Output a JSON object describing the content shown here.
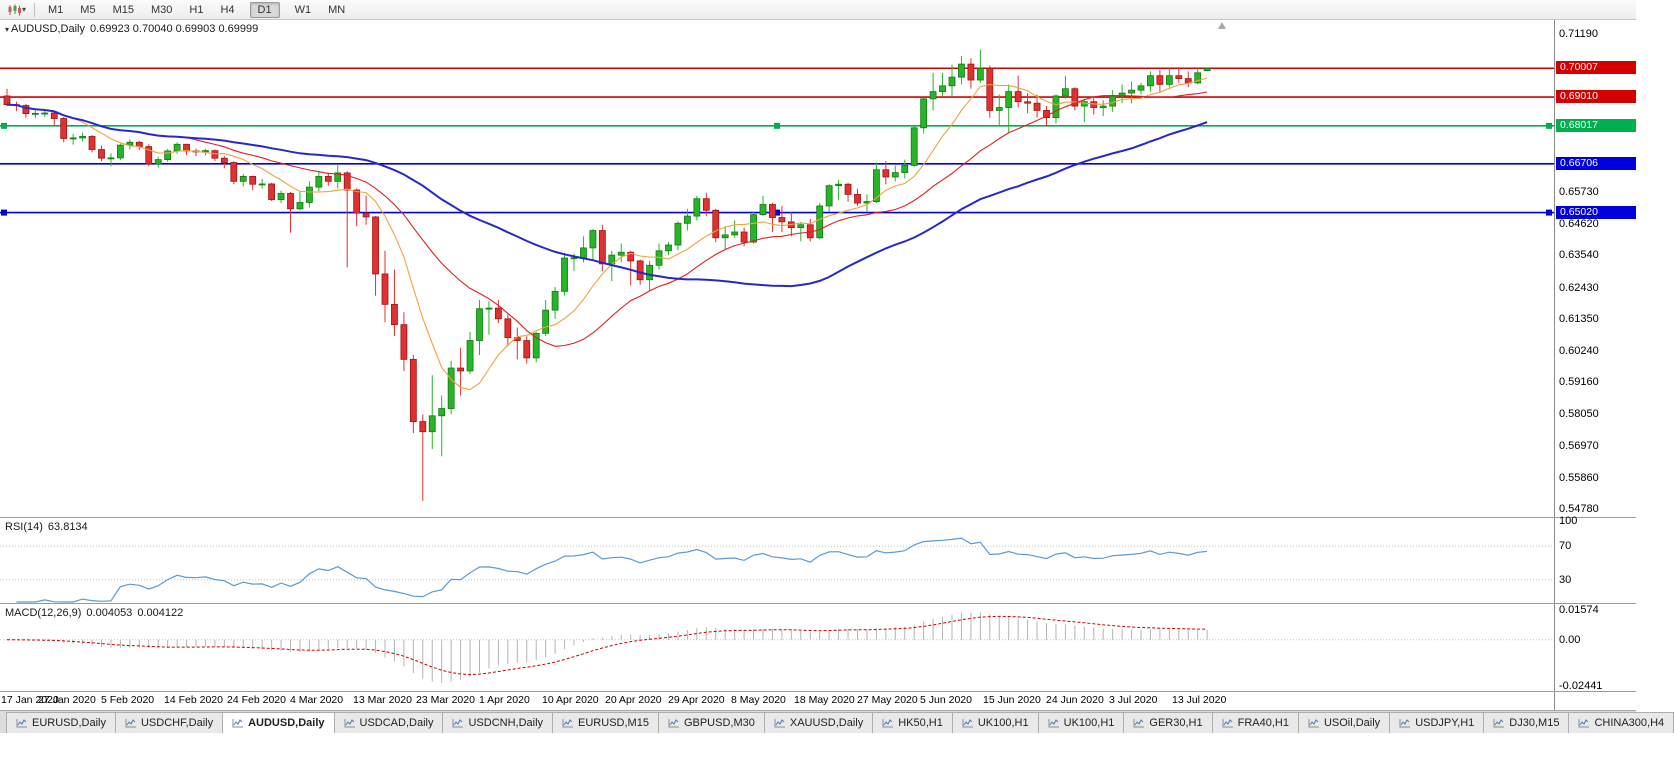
{
  "toolbar": {
    "chart_type_icon": "candlestick-chart-icon",
    "dropdown_icon": "chevron-down-icon",
    "dropdown_glyph": "▾",
    "timeframes": [
      "M1",
      "M5",
      "M15",
      "M30",
      "H1",
      "H4",
      "D1",
      "W1",
      "MN"
    ],
    "active_timeframe": "D1"
  },
  "chart": {
    "menu_glyph": "▾",
    "symbol_label": "AUDUSD,Daily",
    "ohlc_label": "0.69923 0.70040 0.69903 0.69999",
    "open": "0.69923",
    "high": "0.70040",
    "low": "0.69903",
    "close": "0.69999"
  },
  "chart_data": {
    "type": "candlestick",
    "symbol": "AUDUSD",
    "timeframe": "Daily",
    "price_range": [
      0.5478,
      0.7119
    ],
    "up_color": "#28b428",
    "up_border": "#127a12",
    "down_color": "#e03030",
    "down_border": "#9c1616",
    "x_labels": [
      "17 Jan 2020",
      "27 Jan 2020",
      "5 Feb 2020",
      "14 Feb 2020",
      "24 Feb 2020",
      "4 Mar 2020",
      "13 Mar 2020",
      "23 Mar 2020",
      "1 Apr 2020",
      "10 Apr 2020",
      "20 Apr 2020",
      "29 Apr 2020",
      "8 May 2020",
      "18 May 2020",
      "27 May 2020",
      "5 Jun 2020",
      "15 Jun 2020",
      "24 Jun 2020",
      "3 Jul 2020",
      "13 Jul 2020"
    ],
    "scale_labels": [
      "0.71190",
      "0.65730",
      "0.64620",
      "0.63540",
      "0.62430",
      "0.61350",
      "0.60240",
      "0.59160",
      "0.58050",
      "0.56970",
      "0.55860",
      "0.54780"
    ],
    "hlines": [
      {
        "price": 0.70007,
        "label": "0.70007",
        "color": "#d40000",
        "selected": false
      },
      {
        "price": 0.6901,
        "label": "0.69010",
        "color": "#d40000",
        "selected": false
      },
      {
        "price": 0.68017,
        "label": "0.68017",
        "color": "#00b050",
        "selected": true
      },
      {
        "price": 0.66706,
        "label": "0.66706",
        "color": "#0000dd",
        "selected": false
      },
      {
        "price": 0.6502,
        "label": "0.65020",
        "color": "#0000dd",
        "selected": true
      }
    ],
    "moving_averages": [
      {
        "name": "fast",
        "period": 8,
        "color": "#eda440",
        "width": 1.1
      },
      {
        "name": "mid",
        "period": 20,
        "color": "#e02020",
        "width": 1.1
      },
      {
        "name": "slow",
        "period": 45,
        "color": "#2828c8",
        "width": 2.0
      }
    ],
    "candles": [
      [
        0.6905,
        0.693,
        0.687,
        0.6875
      ],
      [
        0.6875,
        0.6885,
        0.6852,
        0.6872
      ],
      [
        0.6872,
        0.6878,
        0.683,
        0.6844
      ],
      [
        0.6844,
        0.6861,
        0.6828,
        0.6845
      ],
      [
        0.6845,
        0.6858,
        0.6832,
        0.6846
      ],
      [
        0.6846,
        0.685,
        0.6805,
        0.6827
      ],
      [
        0.6827,
        0.6832,
        0.6745,
        0.6758
      ],
      [
        0.6758,
        0.6774,
        0.6737,
        0.676
      ],
      [
        0.676,
        0.6778,
        0.6748,
        0.6765
      ],
      [
        0.6765,
        0.677,
        0.671,
        0.672
      ],
      [
        0.672,
        0.6733,
        0.668,
        0.669
      ],
      [
        0.669,
        0.6707,
        0.6662,
        0.6691
      ],
      [
        0.6691,
        0.674,
        0.6683,
        0.6735
      ],
      [
        0.6735,
        0.6755,
        0.672,
        0.6745
      ],
      [
        0.6745,
        0.675,
        0.6718,
        0.673
      ],
      [
        0.673,
        0.6738,
        0.6662,
        0.667
      ],
      [
        0.667,
        0.6695,
        0.6657,
        0.6685
      ],
      [
        0.6685,
        0.6722,
        0.6678,
        0.6715
      ],
      [
        0.6715,
        0.6745,
        0.6705,
        0.6738
      ],
      [
        0.6738,
        0.674,
        0.67,
        0.6715
      ],
      [
        0.6715,
        0.6723,
        0.6697,
        0.6712
      ],
      [
        0.6712,
        0.6722,
        0.67,
        0.6716
      ],
      [
        0.6716,
        0.672,
        0.668,
        0.669
      ],
      [
        0.669,
        0.6697,
        0.6655,
        0.6675
      ],
      [
        0.6675,
        0.668,
        0.66,
        0.661
      ],
      [
        0.661,
        0.6635,
        0.6592,
        0.6627
      ],
      [
        0.6627,
        0.663,
        0.658,
        0.66
      ],
      [
        0.66,
        0.6618,
        0.6585,
        0.6601
      ],
      [
        0.6601,
        0.6605,
        0.6542,
        0.6547
      ],
      [
        0.6547,
        0.6578,
        0.6535,
        0.6568
      ],
      [
        0.6568,
        0.6573,
        0.6433,
        0.6515
      ],
      [
        0.6515,
        0.6574,
        0.651,
        0.6537
      ],
      [
        0.6537,
        0.661,
        0.652,
        0.659
      ],
      [
        0.659,
        0.6645,
        0.6576,
        0.6627
      ],
      [
        0.6627,
        0.664,
        0.6595,
        0.661
      ],
      [
        0.661,
        0.667,
        0.6585,
        0.6639
      ],
      [
        0.6639,
        0.6645,
        0.6313,
        0.658
      ],
      [
        0.658,
        0.6585,
        0.6455,
        0.65
      ],
      [
        0.65,
        0.656,
        0.646,
        0.6487
      ],
      [
        0.6487,
        0.649,
        0.6215,
        0.629
      ],
      [
        0.629,
        0.637,
        0.6123,
        0.6185
      ],
      [
        0.6185,
        0.6305,
        0.6076,
        0.6115
      ],
      [
        0.6115,
        0.6158,
        0.5955,
        0.5995
      ],
      [
        0.5995,
        0.601,
        0.574,
        0.578
      ],
      [
        0.578,
        0.5805,
        0.5506,
        0.5745
      ],
      [
        0.5745,
        0.594,
        0.5685,
        0.58
      ],
      [
        0.58,
        0.587,
        0.566,
        0.5825
      ],
      [
        0.5825,
        0.599,
        0.5805,
        0.5965
      ],
      [
        0.5965,
        0.6035,
        0.587,
        0.5955
      ],
      [
        0.5955,
        0.609,
        0.5945,
        0.606
      ],
      [
        0.606,
        0.62,
        0.601,
        0.617
      ],
      [
        0.617,
        0.6195,
        0.608,
        0.6172
      ],
      [
        0.6172,
        0.62,
        0.612,
        0.6135
      ],
      [
        0.6135,
        0.615,
        0.604,
        0.607
      ],
      [
        0.607,
        0.6105,
        0.5995,
        0.606
      ],
      [
        0.606,
        0.6075,
        0.598,
        0.6
      ],
      [
        0.6,
        0.609,
        0.5985,
        0.6085
      ],
      [
        0.6085,
        0.62,
        0.6075,
        0.6165
      ],
      [
        0.6165,
        0.6245,
        0.6135,
        0.623
      ],
      [
        0.623,
        0.6363,
        0.6215,
        0.6345
      ],
      [
        0.6345,
        0.636,
        0.63,
        0.6346
      ],
      [
        0.6346,
        0.642,
        0.633,
        0.638
      ],
      [
        0.638,
        0.6445,
        0.634,
        0.644
      ],
      [
        0.644,
        0.646,
        0.63,
        0.6325
      ],
      [
        0.6325,
        0.637,
        0.6265,
        0.6355
      ],
      [
        0.6355,
        0.6395,
        0.633,
        0.6365
      ],
      [
        0.6365,
        0.637,
        0.625,
        0.6335
      ],
      [
        0.6335,
        0.634,
        0.6253,
        0.627
      ],
      [
        0.627,
        0.6335,
        0.623,
        0.632
      ],
      [
        0.632,
        0.6395,
        0.6305,
        0.637
      ],
      [
        0.637,
        0.64,
        0.6355,
        0.639
      ],
      [
        0.639,
        0.6472,
        0.6372,
        0.6465
      ],
      [
        0.6465,
        0.6515,
        0.644,
        0.649
      ],
      [
        0.649,
        0.656,
        0.6475,
        0.655
      ],
      [
        0.655,
        0.657,
        0.649,
        0.651
      ],
      [
        0.651,
        0.6515,
        0.64,
        0.6415
      ],
      [
        0.6415,
        0.6455,
        0.6372,
        0.6425
      ],
      [
        0.6425,
        0.6475,
        0.6415,
        0.6435
      ],
      [
        0.6435,
        0.645,
        0.6385,
        0.64
      ],
      [
        0.64,
        0.6505,
        0.6395,
        0.6495
      ],
      [
        0.6495,
        0.656,
        0.649,
        0.653
      ],
      [
        0.653,
        0.6535,
        0.6435,
        0.6485
      ],
      [
        0.6485,
        0.6525,
        0.6435,
        0.647
      ],
      [
        0.647,
        0.6505,
        0.642,
        0.645
      ],
      [
        0.645,
        0.647,
        0.6403,
        0.646
      ],
      [
        0.646,
        0.648,
        0.6402,
        0.6415
      ],
      [
        0.6415,
        0.6535,
        0.641,
        0.6525
      ],
      [
        0.6525,
        0.66,
        0.6505,
        0.6595
      ],
      [
        0.6595,
        0.6615,
        0.6545,
        0.66
      ],
      [
        0.66,
        0.6605,
        0.654,
        0.6565
      ],
      [
        0.6565,
        0.6585,
        0.6525,
        0.6535
      ],
      [
        0.6535,
        0.6565,
        0.6505,
        0.654
      ],
      [
        0.654,
        0.6675,
        0.6535,
        0.665
      ],
      [
        0.665,
        0.668,
        0.66,
        0.6625
      ],
      [
        0.6625,
        0.6665,
        0.661,
        0.664
      ],
      [
        0.664,
        0.6685,
        0.662,
        0.6665
      ],
      [
        0.6665,
        0.68,
        0.666,
        0.6795
      ],
      [
        0.6795,
        0.69,
        0.6775,
        0.6895
      ],
      [
        0.6895,
        0.6985,
        0.6855,
        0.692
      ],
      [
        0.692,
        0.6985,
        0.6905,
        0.694
      ],
      [
        0.694,
        0.7013,
        0.69,
        0.697
      ],
      [
        0.697,
        0.7043,
        0.6945,
        0.7015
      ],
      [
        0.7015,
        0.7035,
        0.693,
        0.696
      ],
      [
        0.696,
        0.7065,
        0.695,
        0.7
      ],
      [
        0.7,
        0.701,
        0.683,
        0.6855
      ],
      [
        0.6855,
        0.691,
        0.68,
        0.6865
      ],
      [
        0.6865,
        0.6945,
        0.6775,
        0.692
      ],
      [
        0.692,
        0.6975,
        0.6865,
        0.6885
      ],
      [
        0.6885,
        0.6915,
        0.6845,
        0.688
      ],
      [
        0.688,
        0.691,
        0.683,
        0.6855
      ],
      [
        0.6855,
        0.687,
        0.68,
        0.683
      ],
      [
        0.683,
        0.691,
        0.681,
        0.6905
      ],
      [
        0.6905,
        0.6975,
        0.6895,
        0.693
      ],
      [
        0.693,
        0.6935,
        0.6855,
        0.687
      ],
      [
        0.687,
        0.6895,
        0.6815,
        0.6885
      ],
      [
        0.6885,
        0.69,
        0.684,
        0.6865
      ],
      [
        0.6865,
        0.689,
        0.6835,
        0.687
      ],
      [
        0.687,
        0.6925,
        0.685,
        0.6905
      ],
      [
        0.6905,
        0.6945,
        0.688,
        0.6915
      ],
      [
        0.6915,
        0.6955,
        0.688,
        0.6925
      ],
      [
        0.6925,
        0.695,
        0.691,
        0.694
      ],
      [
        0.694,
        0.699,
        0.692,
        0.6975
      ],
      [
        0.6975,
        0.6995,
        0.692,
        0.6945
      ],
      [
        0.6945,
        0.7,
        0.6935,
        0.6975
      ],
      [
        0.6975,
        0.7005,
        0.695,
        0.6965
      ],
      [
        0.6965,
        0.699,
        0.6935,
        0.695
      ],
      [
        0.695,
        0.7,
        0.6945,
        0.6985
      ],
      [
        0.69923,
        0.7004,
        0.69903,
        0.69999
      ]
    ],
    "indicators": {
      "rsi": {
        "label": "RSI(14)",
        "value": "63.8134",
        "period": 14,
        "levels": [
          70,
          30
        ],
        "axis_labels": [
          "100",
          "70",
          "30"
        ],
        "color": "#5b9bd5"
      },
      "macd": {
        "label": "MACD(12,26,9)",
        "value_main": "0.004053",
        "value_signal": "0.004122",
        "fast": 12,
        "slow": 26,
        "signal": 9,
        "range": [
          -0.02441,
          0.01574
        ],
        "axis_labels": [
          "0.01574",
          "0.00",
          "-0.02441"
        ],
        "histogram_color": "#b4b4b4",
        "signal_color": "#cc0000"
      }
    }
  },
  "tabs": {
    "active_index": 2,
    "items": [
      {
        "label": "EURUSD,Daily"
      },
      {
        "label": "USDCHF,Daily"
      },
      {
        "label": "AUDUSD,Daily"
      },
      {
        "label": "USDCAD,Daily"
      },
      {
        "label": "USDCNH,Daily"
      },
      {
        "label": "EURUSD,M15"
      },
      {
        "label": "GBPUSD,M30"
      },
      {
        "label": "XAUUSD,Daily"
      },
      {
        "label": "HK50,H1"
      },
      {
        "label": "UK100,H1"
      },
      {
        "label": "UK100,H1"
      },
      {
        "label": "GER30,H1"
      },
      {
        "label": "FRA40,H1"
      },
      {
        "label": "USOil,Daily"
      },
      {
        "label": "USDJPY,H1"
      },
      {
        "label": "DJ30,M15"
      },
      {
        "label": "CHINA300,H4"
      }
    ]
  }
}
